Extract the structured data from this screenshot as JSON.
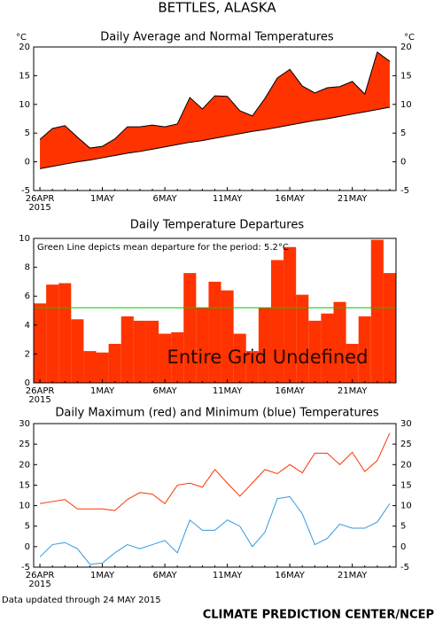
{
  "title": "BETTLES, ALASKA",
  "footer_note": "Data updated through 24 MAY 2015",
  "credit": "CLIMATE PREDICTION CENTER/NCEP",
  "chart_data": [
    {
      "type": "band",
      "title": "Daily Average and Normal Temperatures",
      "y_unit": "°C",
      "y2_unit": "°C",
      "categories": [
        "26APR",
        null,
        null,
        null,
        null,
        "1MAY",
        null,
        null,
        null,
        null,
        "6MAY",
        null,
        null,
        null,
        null,
        "11MAY",
        null,
        null,
        null,
        null,
        "16MAY",
        null,
        null,
        null,
        null,
        "21MAY",
        null,
        null,
        null
      ],
      "x_year": "2015",
      "fill_color": "#ff3300",
      "series": [
        {
          "color": "#000000",
          "values": [
            3.9,
            5.8,
            6.3,
            4.3,
            2.4,
            2.7,
            4.0,
            6.1,
            6.1,
            6.4,
            6.1,
            6.6,
            11.2,
            9.2,
            11.5,
            11.4,
            8.9,
            8.0,
            11.0,
            14.6,
            16.1,
            13.2,
            12.0,
            12.9,
            13.1,
            14.0,
            11.8,
            19.1,
            17.5
          ]
        },
        {
          "color": "#000000",
          "values": [
            -1.2,
            -0.8,
            -0.4,
            0.0,
            0.3,
            0.7,
            1.1,
            1.5,
            1.8,
            2.2,
            2.6,
            3.0,
            3.4,
            3.7,
            4.1,
            4.5,
            4.9,
            5.3,
            5.6,
            6.0,
            6.4,
            6.8,
            7.2,
            7.5,
            7.9,
            8.3,
            8.7,
            9.1,
            9.5
          ]
        }
      ],
      "ylim": [
        -5,
        20
      ],
      "yticks": [
        -5,
        0,
        5,
        10,
        15,
        20
      ],
      "y2lim": [
        -5,
        20
      ],
      "y2ticks": [
        -5,
        0,
        5,
        10,
        15,
        20
      ]
    },
    {
      "type": "bar",
      "title": "Daily Temperature Departures",
      "categories": [
        "26APR",
        null,
        null,
        null,
        null,
        "1MAY",
        null,
        null,
        null,
        null,
        "6MAY",
        null,
        null,
        null,
        null,
        "11MAY",
        null,
        null,
        null,
        null,
        "16MAY",
        null,
        null,
        null,
        null,
        "21MAY",
        null,
        null,
        null
      ],
      "x_year": "2015",
      "color": "#ff3300",
      "values": [
        5.5,
        6.8,
        6.9,
        4.4,
        2.2,
        2.1,
        2.7,
        4.6,
        4.3,
        4.3,
        3.4,
        3.5,
        7.6,
        5.2,
        7.0,
        6.4,
        3.4,
        2.2,
        5.2,
        8.5,
        9.4,
        6.1,
        4.3,
        4.8,
        5.6,
        2.7,
        4.6,
        9.9,
        7.6
      ],
      "mean": 5.2,
      "mean_color": "#00cc00",
      "annotation": "Green Line depicts mean departure for the period: ",
      "mean_label": "5.2°C",
      "overlay_text": "Entire Grid Undefined",
      "ylim": [
        0,
        10
      ],
      "yticks": [
        0,
        2,
        4,
        6,
        8,
        10
      ]
    },
    {
      "type": "line",
      "title": "Daily Maximum (red) and Minimum (blue) Temperatures",
      "categories": [
        "26APR",
        null,
        null,
        null,
        null,
        "1MAY",
        null,
        null,
        null,
        null,
        "6MAY",
        null,
        null,
        null,
        null,
        "11MAY",
        null,
        null,
        null,
        null,
        "16MAY",
        null,
        null,
        null,
        null,
        "21MAY",
        null,
        null,
        null
      ],
      "x_year": "2015",
      "series": [
        {
          "color": "#ff3300",
          "values": [
            10.5,
            11.0,
            11.5,
            9.2,
            9.2,
            9.2,
            8.8,
            11.5,
            13.2,
            12.8,
            10.5,
            15.0,
            15.5,
            14.5,
            18.8,
            15.5,
            12.3,
            15.5,
            18.8,
            17.8,
            20.0,
            18.0,
            22.8,
            22.8,
            20.0,
            23.0,
            18.3,
            21.0,
            27.7
          ]
        },
        {
          "color": "#3399dd",
          "values": [
            -2.5,
            0.5,
            1.0,
            -0.5,
            -4.3,
            -4.0,
            -1.5,
            0.5,
            -0.5,
            0.5,
            1.5,
            -1.5,
            6.5,
            4.0,
            4.0,
            6.5,
            5.0,
            0.0,
            3.5,
            11.7,
            12.2,
            8.0,
            0.5,
            2.0,
            5.5,
            4.5,
            4.5,
            6.0,
            10.5
          ]
        }
      ],
      "ylim": [
        -5,
        30
      ],
      "yticks": [
        -5,
        0,
        5,
        10,
        15,
        20,
        25,
        30
      ],
      "y2lim": [
        -5,
        30
      ],
      "y2ticks": [
        -5,
        0,
        5,
        10,
        15,
        20,
        25,
        30
      ]
    }
  ]
}
